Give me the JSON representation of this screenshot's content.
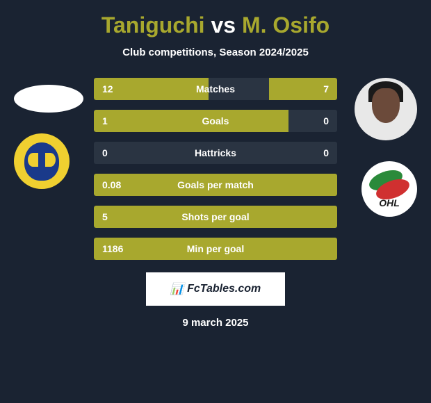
{
  "header": {
    "player1": "Taniguchi",
    "vs": "vs",
    "player2": "M. Osifo",
    "subtitle": "Club competitions, Season 2024/2025"
  },
  "colors": {
    "background": "#1a2332",
    "bar_fill": "#a8a82e",
    "bar_empty": "#2a3442",
    "text": "#ffffff",
    "player_name": "#a8a82e",
    "club1_bg": "#f0d030",
    "club1_shield": "#1a3a8a",
    "club2_bg": "#ffffff"
  },
  "stats": [
    {
      "label": "Matches",
      "left_value": "12",
      "right_value": "7",
      "left_pct": 47,
      "right_pct": 28
    },
    {
      "label": "Goals",
      "left_value": "1",
      "right_value": "0",
      "left_pct": 80,
      "right_pct": 0
    },
    {
      "label": "Hattricks",
      "left_value": "0",
      "right_value": "0",
      "left_pct": 0,
      "right_pct": 0
    },
    {
      "label": "Goals per match",
      "left_value": "0.08",
      "right_value": "",
      "left_pct": 100,
      "right_pct": 0
    },
    {
      "label": "Shots per goal",
      "left_value": "5",
      "right_value": "",
      "left_pct": 100,
      "right_pct": 0
    },
    {
      "label": "Min per goal",
      "left_value": "1186",
      "right_value": "",
      "left_pct": 100,
      "right_pct": 0
    }
  ],
  "footer": {
    "logo_text": "FcTables.com",
    "date": "9 march 2025"
  },
  "club2_label": "OHL",
  "typography": {
    "title_fontsize": 32,
    "subtitle_fontsize": 15,
    "stat_fontsize": 14
  }
}
